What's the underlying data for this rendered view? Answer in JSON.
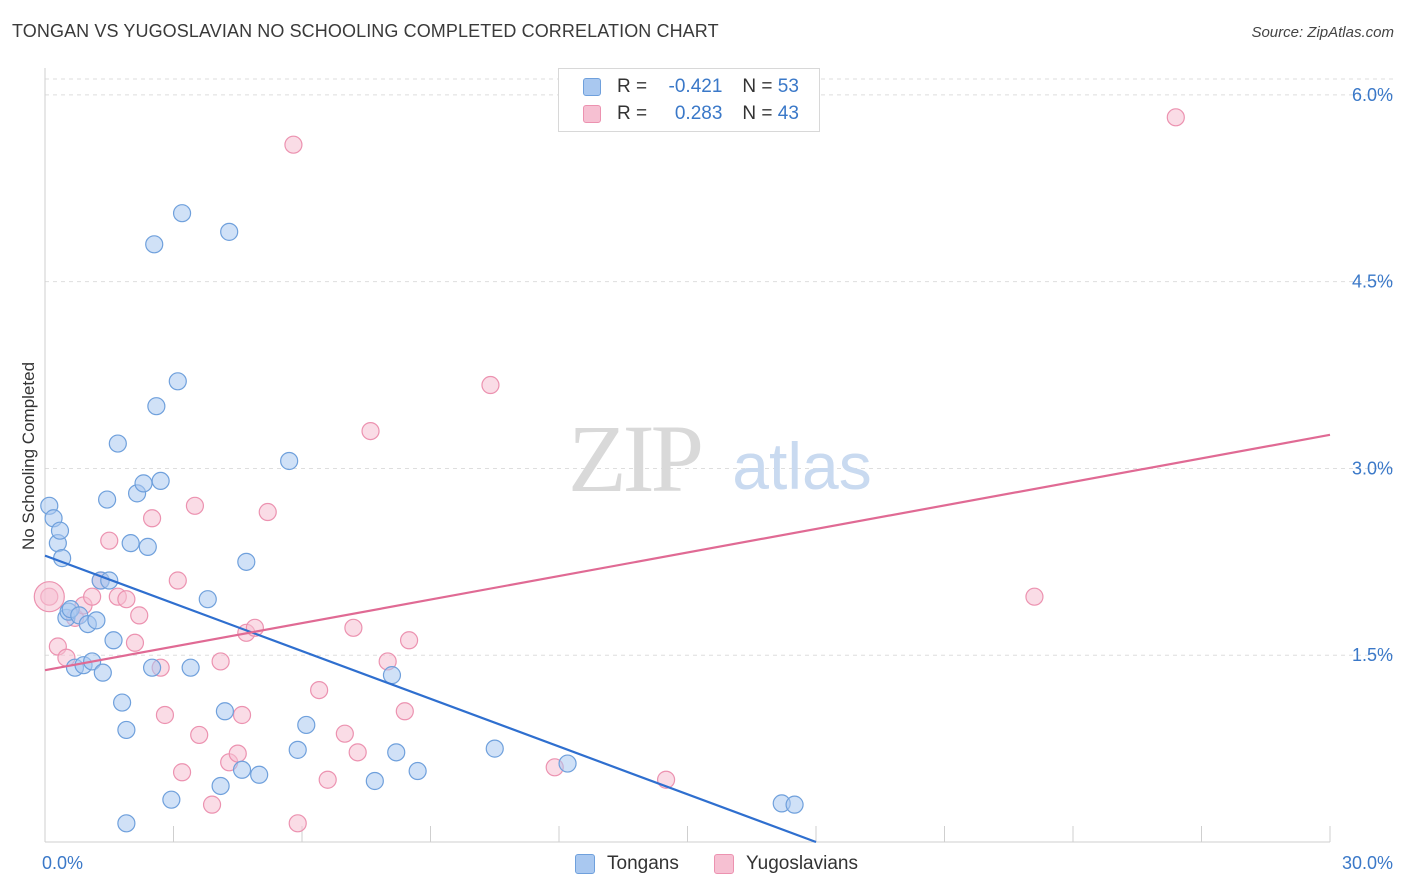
{
  "title": "TONGAN VS YUGOSLAVIAN NO SCHOOLING COMPLETED CORRELATION CHART",
  "source": "Source: ZipAtlas.com",
  "watermark": {
    "zip": "ZIP",
    "atlas": "atlas"
  },
  "legend": {
    "rows": [
      {
        "r_label": "R =",
        "r_value": "-0.421",
        "n_label": "N =",
        "n_value": "53"
      },
      {
        "r_label": "R =",
        "r_value": "0.283",
        "n_label": "N =",
        "n_value": "43"
      }
    ]
  },
  "colors": {
    "tongans_fill": "#a9c8f0",
    "tongans_stroke": "#6fa0dc",
    "tongans_line": "#2f6fcf",
    "yugo_fill": "#f6c0d2",
    "yugo_stroke": "#ec92b0",
    "yugo_line": "#e06a94",
    "tick_label": "#3a78c8",
    "grid": "#dedede"
  },
  "chart_data": {
    "type": "scatter",
    "title": "TONGAN VS YUGOSLAVIAN NO SCHOOLING COMPLETED CORRELATION CHART",
    "xlabel": "",
    "ylabel": "No Schooling Completed",
    "xlim": [
      0,
      30
    ],
    "ylim": [
      0,
      6.2
    ],
    "x_tick_labels": [
      "0.0%",
      "30.0%"
    ],
    "y_ticks": [
      1.5,
      3.0,
      4.5,
      6.0
    ],
    "y_tick_labels": [
      "1.5%",
      "3.0%",
      "4.5%",
      "6.0%"
    ],
    "grid": true,
    "legend_position": "bottom",
    "series": [
      {
        "name": "Tongans",
        "r": -0.421,
        "n": 53,
        "trend": {
          "x": [
            0,
            18
          ],
          "y": [
            2.3,
            0.0
          ]
        },
        "points": [
          [
            0.1,
            2.7
          ],
          [
            0.2,
            2.6
          ],
          [
            0.3,
            2.4
          ],
          [
            0.35,
            2.5
          ],
          [
            0.4,
            2.28
          ],
          [
            0.5,
            1.8
          ],
          [
            0.55,
            1.85
          ],
          [
            0.6,
            1.87
          ],
          [
            0.7,
            1.4
          ],
          [
            0.8,
            1.82
          ],
          [
            0.9,
            1.42
          ],
          [
            1.0,
            1.75
          ],
          [
            1.1,
            1.45
          ],
          [
            1.2,
            1.78
          ],
          [
            1.3,
            2.1
          ],
          [
            1.35,
            1.36
          ],
          [
            1.45,
            2.75
          ],
          [
            1.5,
            2.1
          ],
          [
            1.6,
            1.62
          ],
          [
            1.7,
            3.2
          ],
          [
            1.8,
            1.12
          ],
          [
            1.9,
            0.9
          ],
          [
            1.9,
            0.15
          ],
          [
            2.0,
            2.4
          ],
          [
            2.15,
            2.8
          ],
          [
            2.3,
            2.88
          ],
          [
            2.4,
            2.37
          ],
          [
            2.5,
            1.4
          ],
          [
            2.55,
            4.8
          ],
          [
            2.6,
            3.5
          ],
          [
            2.7,
            2.9
          ],
          [
            2.95,
            0.34
          ],
          [
            3.1,
            3.7
          ],
          [
            3.2,
            5.05
          ],
          [
            3.4,
            1.4
          ],
          [
            3.8,
            1.95
          ],
          [
            4.1,
            0.45
          ],
          [
            4.2,
            1.05
          ],
          [
            4.3,
            4.9
          ],
          [
            4.6,
            0.58
          ],
          [
            4.7,
            2.25
          ],
          [
            5.0,
            0.54
          ],
          [
            5.7,
            3.06
          ],
          [
            5.9,
            0.74
          ],
          [
            6.1,
            0.94
          ],
          [
            7.7,
            0.49
          ],
          [
            8.1,
            1.34
          ],
          [
            8.2,
            0.72
          ],
          [
            8.7,
            0.57
          ],
          [
            10.5,
            0.75
          ],
          [
            12.2,
            0.63
          ],
          [
            17.2,
            0.31
          ],
          [
            17.5,
            0.3
          ]
        ]
      },
      {
        "name": "Yugoslavians",
        "r": 0.283,
        "n": 43,
        "trend": {
          "x": [
            0,
            30
          ],
          "y": [
            1.38,
            3.27
          ]
        },
        "points": [
          [
            0.1,
            1.97
          ],
          [
            0.3,
            1.57
          ],
          [
            0.5,
            1.48
          ],
          [
            0.7,
            1.8
          ],
          [
            0.9,
            1.9
          ],
          [
            1.1,
            1.97
          ],
          [
            1.3,
            2.1
          ],
          [
            1.5,
            2.42
          ],
          [
            1.7,
            1.97
          ],
          [
            1.9,
            1.95
          ],
          [
            2.1,
            1.6
          ],
          [
            2.2,
            1.82
          ],
          [
            2.5,
            2.6
          ],
          [
            2.7,
            1.4
          ],
          [
            2.8,
            1.02
          ],
          [
            3.1,
            2.1
          ],
          [
            3.2,
            0.56
          ],
          [
            3.5,
            2.7
          ],
          [
            3.6,
            0.86
          ],
          [
            3.9,
            0.3
          ],
          [
            4.1,
            1.45
          ],
          [
            4.3,
            0.64
          ],
          [
            4.5,
            0.71
          ],
          [
            4.6,
            1.02
          ],
          [
            4.7,
            1.68
          ],
          [
            4.9,
            1.72
          ],
          [
            5.2,
            2.65
          ],
          [
            5.8,
            5.6
          ],
          [
            5.9,
            0.15
          ],
          [
            6.4,
            1.22
          ],
          [
            6.6,
            0.5
          ],
          [
            7.0,
            0.87
          ],
          [
            7.2,
            1.72
          ],
          [
            7.3,
            0.72
          ],
          [
            7.6,
            3.3
          ],
          [
            8.0,
            1.45
          ],
          [
            8.4,
            1.05
          ],
          [
            8.5,
            1.62
          ],
          [
            10.4,
            3.67
          ],
          [
            11.9,
            0.6
          ],
          [
            14.5,
            0.5
          ],
          [
            23.1,
            1.97
          ],
          [
            26.4,
            5.82
          ]
        ]
      }
    ]
  },
  "bottom_legend": [
    "Tongans",
    "Yugoslavians"
  ]
}
